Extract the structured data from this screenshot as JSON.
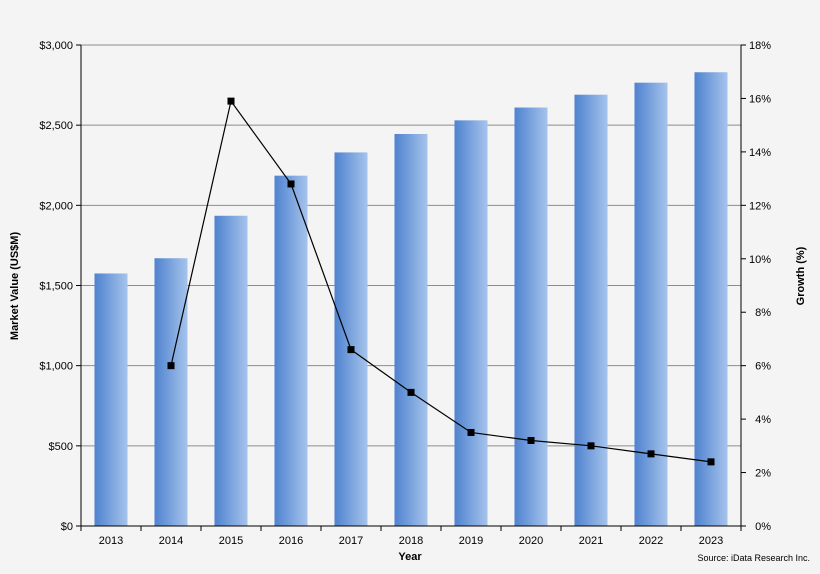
{
  "chart_data": {
    "type": "bar",
    "categories": [
      "2013",
      "2014",
      "2015",
      "2016",
      "2017",
      "2018",
      "2019",
      "2020",
      "2021",
      "2022",
      "2023"
    ],
    "series": [
      {
        "name": "",
        "type": "bar",
        "axis": "left",
        "values": [
          1575,
          1670,
          1935,
          2185,
          2330,
          2445,
          2530,
          2610,
          2690,
          2765,
          2830
        ]
      },
      {
        "name": "",
        "type": "line",
        "axis": "right",
        "values": [
          null,
          6.0,
          15.9,
          12.8,
          6.6,
          5.0,
          3.5,
          3.2,
          3.0,
          2.7,
          2.4
        ]
      }
    ],
    "xlabel": "Year",
    "ylabel": "Market Value (US$M)",
    "y2label": "Growth (%)",
    "ylim": [
      0,
      3000
    ],
    "y2lim": [
      0,
      18
    ],
    "yticks": [
      "$0",
      "$500",
      "$1,000",
      "$1,500",
      "$2,000",
      "$2,500",
      "$3,000"
    ],
    "y2ticks": [
      "0%",
      "2%",
      "4%",
      "6%",
      "8%",
      "10%",
      "12%",
      "14%",
      "16%",
      "18%"
    ],
    "grid": true,
    "colors": {
      "bar": "#5b8fd6",
      "bar_light": "#a3c2ec",
      "line": "#000000",
      "grid": "#8c8c8c"
    }
  },
  "source": "Source: iData Research Inc."
}
